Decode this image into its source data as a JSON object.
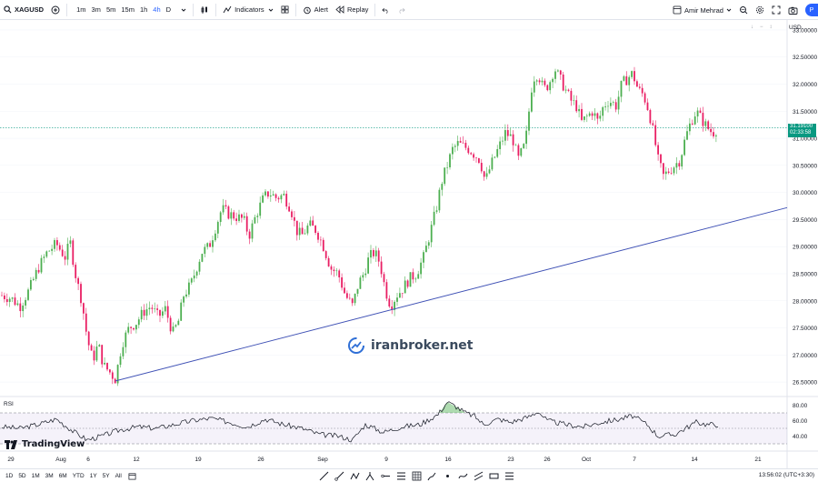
{
  "toolbar": {
    "symbol": "XAGUSD",
    "timeframes": [
      {
        "label": "1m",
        "active": false
      },
      {
        "label": "3m",
        "active": false
      },
      {
        "label": "5m",
        "active": false
      },
      {
        "label": "15m",
        "active": false
      },
      {
        "label": "1h",
        "active": false
      },
      {
        "label": "4h",
        "active": true
      },
      {
        "label": "D",
        "active": false
      }
    ],
    "indicators_label": "Indicators",
    "alert_label": "Alert",
    "replay_label": "Replay",
    "user_name": "Amir Mehrad",
    "publish_label": "P"
  },
  "price_axis": {
    "currency": "USD",
    "ticks": [
      "33.00000",
      "32.50000",
      "32.00000",
      "31.50000",
      "31.00000",
      "30.50000",
      "30.00000",
      "29.50000",
      "29.00000",
      "28.50000",
      "28.00000",
      "27.50000",
      "27.00000",
      "26.50000"
    ],
    "current_price": "31.19100",
    "countdown": "02:33:58"
  },
  "time_axis": {
    "ticks": [
      "29",
      "Aug",
      "6",
      "12",
      "19",
      "26",
      "Sep",
      "9",
      "16",
      "23",
      "26",
      "Oct",
      "7",
      "14",
      "21"
    ]
  },
  "rsi": {
    "label": "RSI",
    "ticks": [
      "80.00",
      "60.00",
      "40.00"
    ]
  },
  "watermark": "iranbroker.net",
  "brand": "TradingView",
  "bottom": {
    "ranges": [
      "1D",
      "5D",
      "1M",
      "3M",
      "6M",
      "YTD",
      "1Y",
      "5Y",
      "All"
    ],
    "clock": "13:56:02 (UTC+3:30)"
  },
  "colors": {
    "up": "#089981",
    "up_candle": "#4caf50",
    "down": "#e91e63",
    "trendline": "#3f51b5",
    "rsi_line": "#131722",
    "rsi_band": "#7e57c2",
    "accent": "#2962ff"
  },
  "chart_data": {
    "type": "candlestick",
    "symbol": "XAGUSD",
    "ylim": [
      26.3,
      33.1
    ],
    "x_labels": [
      "29",
      "Aug",
      "6",
      "12",
      "19",
      "26",
      "Sep",
      "9",
      "16",
      "23",
      "26",
      "Oct",
      "7",
      "14",
      "21"
    ],
    "price_path": [
      [
        0,
        28.1
      ],
      [
        10,
        28.05
      ],
      [
        20,
        27.9
      ],
      [
        30,
        28.2
      ],
      [
        40,
        28.6
      ],
      [
        50,
        28.9
      ],
      [
        60,
        29.05
      ],
      [
        70,
        28.8
      ],
      [
        75,
        29.1
      ],
      [
        82,
        28.4
      ],
      [
        88,
        28.0
      ],
      [
        94,
        27.3
      ],
      [
        100,
        26.9
      ],
      [
        106,
        27.2
      ],
      [
        112,
        26.8
      ],
      [
        118,
        26.7
      ],
      [
        125,
        26.55
      ],
      [
        132,
        27.2
      ],
      [
        140,
        27.5
      ],
      [
        148,
        27.6
      ],
      [
        156,
        27.8
      ],
      [
        164,
        27.9
      ],
      [
        172,
        27.7
      ],
      [
        180,
        27.85
      ],
      [
        188,
        27.4
      ],
      [
        194,
        27.6
      ],
      [
        200,
        28.1
      ],
      [
        208,
        28.3
      ],
      [
        214,
        28.6
      ],
      [
        220,
        28.9
      ],
      [
        228,
        29.0
      ],
      [
        236,
        29.4
      ],
      [
        242,
        29.7
      ],
      [
        250,
        29.6
      ],
      [
        258,
        29.55
      ],
      [
        266,
        29.5
      ],
      [
        272,
        29.2
      ],
      [
        280,
        29.6
      ],
      [
        288,
        29.9
      ],
      [
        294,
        30.0
      ],
      [
        302,
        29.9
      ],
      [
        310,
        29.95
      ],
      [
        318,
        29.7
      ],
      [
        324,
        29.3
      ],
      [
        330,
        29.2
      ],
      [
        338,
        29.4
      ],
      [
        346,
        29.3
      ],
      [
        354,
        29.0
      ],
      [
        362,
        28.6
      ],
      [
        370,
        28.5
      ],
      [
        378,
        28.1
      ],
      [
        386,
        27.9
      ],
      [
        392,
        28.3
      ],
      [
        398,
        28.5
      ],
      [
        404,
        28.8
      ],
      [
        410,
        28.9
      ],
      [
        416,
        28.7
      ],
      [
        422,
        28.2
      ],
      [
        428,
        27.9
      ],
      [
        434,
        28.1
      ],
      [
        440,
        28.2
      ],
      [
        448,
        28.4
      ],
      [
        456,
        28.5
      ],
      [
        464,
        28.8
      ],
      [
        472,
        29.3
      ],
      [
        478,
        29.7
      ],
      [
        484,
        30.2
      ],
      [
        490,
        30.5
      ],
      [
        496,
        30.8
      ],
      [
        502,
        30.9
      ],
      [
        508,
        30.85
      ],
      [
        514,
        30.8
      ],
      [
        520,
        30.7
      ],
      [
        526,
        30.6
      ],
      [
        532,
        30.2
      ],
      [
        538,
        30.5
      ],
      [
        546,
        30.8
      ],
      [
        554,
        31.1
      ],
      [
        562,
        31.0
      ],
      [
        568,
        30.6
      ],
      [
        576,
        30.9
      ],
      [
        584,
        32.1
      ],
      [
        590,
        32.2
      ],
      [
        596,
        31.9
      ],
      [
        602,
        32.0
      ],
      [
        608,
        32.3
      ],
      [
        614,
        32.1
      ],
      [
        620,
        31.9
      ],
      [
        626,
        31.7
      ],
      [
        632,
        31.6
      ],
      [
        638,
        31.3
      ],
      [
        644,
        31.4
      ],
      [
        650,
        31.5
      ],
      [
        656,
        31.3
      ],
      [
        662,
        31.6
      ],
      [
        668,
        31.7
      ],
      [
        676,
        31.6
      ],
      [
        682,
        32.0
      ],
      [
        688,
        32.1
      ],
      [
        694,
        32.2
      ],
      [
        700,
        31.9
      ],
      [
        706,
        31.8
      ],
      [
        712,
        31.5
      ],
      [
        718,
        31.0
      ],
      [
        722,
        30.6
      ],
      [
        728,
        30.3
      ],
      [
        734,
        30.4
      ],
      [
        740,
        30.5
      ],
      [
        746,
        30.6
      ],
      [
        752,
        31.0
      ],
      [
        758,
        31.3
      ],
      [
        764,
        31.5
      ],
      [
        770,
        31.35
      ],
      [
        776,
        31.2
      ],
      [
        782,
        31.1
      ],
      [
        788,
        31.19
      ]
    ],
    "trendline": {
      "from": {
        "x_day": 125,
        "price": 26.52
      },
      "to": {
        "x_day": 866,
        "price": 29.72
      }
    },
    "rsi_path": [
      [
        0,
        52
      ],
      [
        20,
        50
      ],
      [
        40,
        55
      ],
      [
        60,
        62
      ],
      [
        80,
        45
      ],
      [
        94,
        35
      ],
      [
        110,
        40
      ],
      [
        130,
        48
      ],
      [
        150,
        52
      ],
      [
        170,
        50
      ],
      [
        190,
        55
      ],
      [
        210,
        60
      ],
      [
        230,
        63
      ],
      [
        250,
        58
      ],
      [
        270,
        52
      ],
      [
        290,
        62
      ],
      [
        310,
        55
      ],
      [
        330,
        50
      ],
      [
        350,
        42
      ],
      [
        370,
        40
      ],
      [
        386,
        35
      ],
      [
        400,
        55
      ],
      [
        420,
        45
      ],
      [
        440,
        52
      ],
      [
        460,
        55
      ],
      [
        480,
        68
      ],
      [
        490,
        84
      ],
      [
        500,
        78
      ],
      [
        510,
        70
      ],
      [
        520,
        66
      ],
      [
        530,
        55
      ],
      [
        546,
        62
      ],
      [
        560,
        58
      ],
      [
        580,
        65
      ],
      [
        590,
        72
      ],
      [
        600,
        60
      ],
      [
        620,
        55
      ],
      [
        640,
        52
      ],
      [
        660,
        58
      ],
      [
        680,
        62
      ],
      [
        694,
        66
      ],
      [
        710,
        55
      ],
      [
        722,
        40
      ],
      [
        740,
        42
      ],
      [
        752,
        50
      ],
      [
        764,
        58
      ],
      [
        776,
        55
      ],
      [
        788,
        55
      ]
    ]
  }
}
